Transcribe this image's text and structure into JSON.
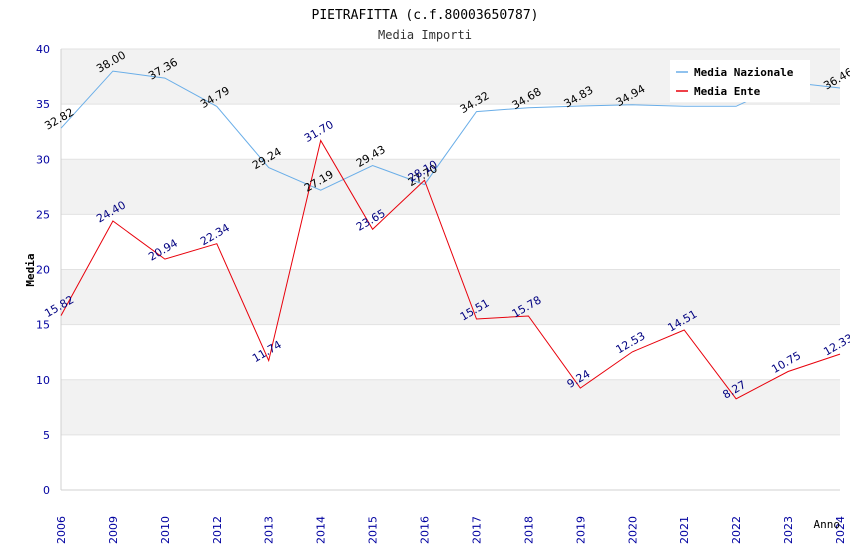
{
  "chart_data": {
    "type": "line",
    "title": "PIETRAFITTA (c.f.80003650787)",
    "subtitle": "Media Importi",
    "xlabel": "Anno",
    "ylabel": "Media",
    "ylim": [
      0,
      40
    ],
    "yticks": [
      0,
      5,
      10,
      15,
      20,
      25,
      30,
      35,
      40
    ],
    "grid": true,
    "legend_position": "top-right",
    "categories": [
      "2006",
      "2009",
      "2010",
      "2012",
      "2013",
      "2014",
      "2015",
      "2016",
      "2017",
      "2018",
      "2019",
      "2020",
      "2021",
      "2022",
      "2023",
      "2024"
    ],
    "series": [
      {
        "name": "Media Nazionale",
        "color": "#6aaee8",
        "label_color": "#000000",
        "values": [
          32.82,
          38.0,
          37.36,
          34.79,
          29.24,
          27.19,
          29.43,
          27.7,
          34.32,
          34.68,
          34.83,
          34.94,
          34.8,
          34.8,
          37.0,
          36.46
        ],
        "labels": [
          "32.82",
          "38.00",
          "37.36",
          "34.79",
          "29.24",
          "27.19",
          "29.43",
          "27.70",
          "34.32",
          "34.68",
          "34.83",
          "34.94",
          "",
          "",
          "",
          "36.46"
        ]
      },
      {
        "name": "Media Ente",
        "color": "#e8000b",
        "label_color": "#000080",
        "values": [
          15.82,
          24.4,
          20.94,
          22.34,
          11.74,
          31.7,
          23.65,
          28.1,
          15.51,
          15.78,
          9.24,
          12.53,
          14.51,
          8.27,
          10.75,
          12.33
        ],
        "labels": [
          "15.82",
          "24.40",
          "20.94",
          "22.34",
          "11.74",
          "31.70",
          "23.65",
          "28.10",
          "15.51",
          "15.78",
          "9.24",
          "12.53",
          "14.51",
          "8.27",
          "10.75",
          "12.33"
        ]
      }
    ]
  }
}
